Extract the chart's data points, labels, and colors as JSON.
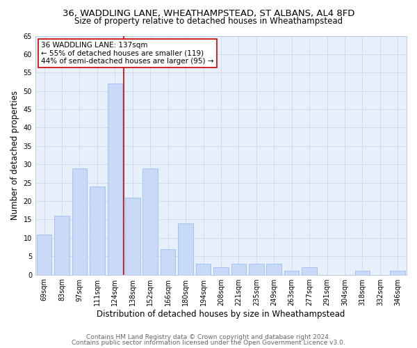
{
  "title": "36, WADDLING LANE, WHEATHAMPSTEAD, ST ALBANS, AL4 8FD",
  "subtitle": "Size of property relative to detached houses in Wheathampstead",
  "xlabel": "Distribution of detached houses by size in Wheathampstead",
  "ylabel": "Number of detached properties",
  "categories": [
    "69sqm",
    "83sqm",
    "97sqm",
    "111sqm",
    "124sqm",
    "138sqm",
    "152sqm",
    "166sqm",
    "180sqm",
    "194sqm",
    "208sqm",
    "221sqm",
    "235sqm",
    "249sqm",
    "263sqm",
    "277sqm",
    "291sqm",
    "304sqm",
    "318sqm",
    "332sqm",
    "346sqm"
  ],
  "values": [
    11,
    16,
    29,
    24,
    52,
    21,
    29,
    7,
    14,
    3,
    2,
    3,
    3,
    3,
    1,
    2,
    0,
    0,
    1,
    0,
    1
  ],
  "bar_color": "#c9daf8",
  "bar_edge_color": "#a4c2f4",
  "vline_x_index": 5,
  "vline_color": "#cc0000",
  "annotation_line1": "36 WADDLING LANE: 137sqm",
  "annotation_line2": "← 55% of detached houses are smaller (119)",
  "annotation_line3": "44% of semi-detached houses are larger (95) →",
  "annotation_box_color": "#ffffff",
  "annotation_box_edge_color": "#cc0000",
  "ylim": [
    0,
    65
  ],
  "yticks": [
    0,
    5,
    10,
    15,
    20,
    25,
    30,
    35,
    40,
    45,
    50,
    55,
    60,
    65
  ],
  "footer_line1": "Contains HM Land Registry data © Crown copyright and database right 2024.",
  "footer_line2": "Contains public sector information licensed under the Open Government Licence v3.0.",
  "background_color": "#ffffff",
  "plot_bg_color": "#e8f0fb",
  "grid_color": "#d0ddf0",
  "title_fontsize": 9.5,
  "subtitle_fontsize": 8.5,
  "axis_label_fontsize": 8.5,
  "tick_fontsize": 7,
  "annotation_fontsize": 7.5,
  "footer_fontsize": 6.5
}
